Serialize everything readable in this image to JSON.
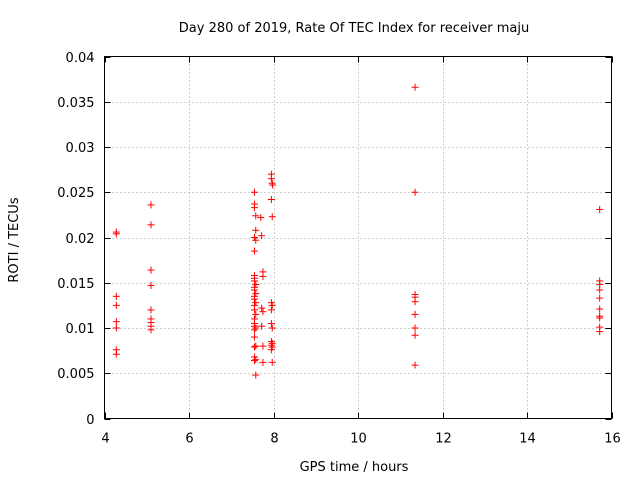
{
  "chart_data": {
    "type": "scatter",
    "title": "Day 280 of 2019, Rate Of TEC Index for receiver maju",
    "xlabel": "GPS time / hours",
    "ylabel": "ROTI / TECUs",
    "xlim": [
      4,
      16
    ],
    "ylim": [
      0,
      0.04
    ],
    "xticks": [
      4,
      6,
      8,
      10,
      12,
      14,
      16
    ],
    "xtick_labels": [
      "4",
      "6",
      "8",
      "10",
      "12",
      "14",
      "16"
    ],
    "yticks": [
      0,
      0.005,
      0.01,
      0.015,
      0.02,
      0.025,
      0.03,
      0.035,
      0.04
    ],
    "ytick_labels": [
      "0",
      "0.005",
      "0.01",
      "0.015",
      "0.02",
      "0.025",
      "0.03",
      "0.035",
      "0.04"
    ],
    "grid": true,
    "marker": "+",
    "marker_color": "#ff0000",
    "series": [
      {
        "name": "ROTI",
        "points": [
          [
            4.28,
            0.0206
          ],
          [
            4.28,
            0.0204
          ],
          [
            4.28,
            0.0135
          ],
          [
            4.28,
            0.0125
          ],
          [
            4.28,
            0.0107
          ],
          [
            4.28,
            0.01
          ],
          [
            4.28,
            0.0076
          ],
          [
            4.28,
            0.0071
          ],
          [
            5.1,
            0.0236
          ],
          [
            5.1,
            0.0214
          ],
          [
            5.1,
            0.0164
          ],
          [
            5.1,
            0.0147
          ],
          [
            5.1,
            0.012
          ],
          [
            5.1,
            0.011
          ],
          [
            5.1,
            0.0106
          ],
          [
            5.1,
            0.0102
          ],
          [
            5.1,
            0.0098
          ],
          [
            7.55,
            0.025
          ],
          [
            7.55,
            0.0237
          ],
          [
            7.55,
            0.0233
          ],
          [
            7.58,
            0.0224
          ],
          [
            7.58,
            0.0208
          ],
          [
            7.55,
            0.02
          ],
          [
            7.58,
            0.0197
          ],
          [
            7.55,
            0.0185
          ],
          [
            7.55,
            0.0158
          ],
          [
            7.55,
            0.0155
          ],
          [
            7.55,
            0.0152
          ],
          [
            7.58,
            0.0148
          ],
          [
            7.55,
            0.0145
          ],
          [
            7.55,
            0.0142
          ],
          [
            7.58,
            0.0138
          ],
          [
            7.55,
            0.0135
          ],
          [
            7.55,
            0.0132
          ],
          [
            7.58,
            0.0128
          ],
          [
            7.55,
            0.0125
          ],
          [
            7.55,
            0.012
          ],
          [
            7.58,
            0.0115
          ],
          [
            7.55,
            0.011
          ],
          [
            7.55,
            0.0105
          ],
          [
            7.55,
            0.0102
          ],
          [
            7.58,
            0.01
          ],
          [
            7.55,
            0.0098
          ],
          [
            7.55,
            0.009
          ],
          [
            7.58,
            0.008
          ],
          [
            7.55,
            0.0079
          ],
          [
            7.55,
            0.0068
          ],
          [
            7.58,
            0.0065
          ],
          [
            7.55,
            0.0064
          ],
          [
            7.58,
            0.0048
          ],
          [
            7.7,
            0.0222
          ],
          [
            7.72,
            0.0202
          ],
          [
            7.75,
            0.0162
          ],
          [
            7.75,
            0.0157
          ],
          [
            7.72,
            0.0122
          ],
          [
            7.75,
            0.0118
          ],
          [
            7.72,
            0.0102
          ],
          [
            7.75,
            0.008
          ],
          [
            7.75,
            0.0062
          ],
          [
            7.95,
            0.027
          ],
          [
            7.95,
            0.0265
          ],
          [
            7.97,
            0.026
          ],
          [
            7.98,
            0.0258
          ],
          [
            7.95,
            0.0242
          ],
          [
            7.97,
            0.0223
          ],
          [
            7.95,
            0.0128
          ],
          [
            7.97,
            0.0125
          ],
          [
            7.95,
            0.012
          ],
          [
            7.95,
            0.0105
          ],
          [
            7.97,
            0.01
          ],
          [
            7.95,
            0.0085
          ],
          [
            7.97,
            0.0083
          ],
          [
            7.95,
            0.0081
          ],
          [
            7.97,
            0.0079
          ],
          [
            7.95,
            0.0076
          ],
          [
            7.97,
            0.0062
          ],
          [
            11.35,
            0.0366
          ],
          [
            11.35,
            0.025
          ],
          [
            11.35,
            0.0137
          ],
          [
            11.35,
            0.0134
          ],
          [
            11.35,
            0.0129
          ],
          [
            11.35,
            0.0115
          ],
          [
            11.35,
            0.01
          ],
          [
            11.35,
            0.0092
          ],
          [
            11.35,
            0.0059
          ],
          [
            15.72,
            0.0231
          ],
          [
            15.72,
            0.0152
          ],
          [
            15.72,
            0.0148
          ],
          [
            15.72,
            0.0142
          ],
          [
            15.72,
            0.0133
          ],
          [
            15.72,
            0.0121
          ],
          [
            15.72,
            0.0113
          ],
          [
            15.72,
            0.0111
          ],
          [
            15.72,
            0.0101
          ],
          [
            15.72,
            0.0096
          ]
        ]
      }
    ]
  }
}
